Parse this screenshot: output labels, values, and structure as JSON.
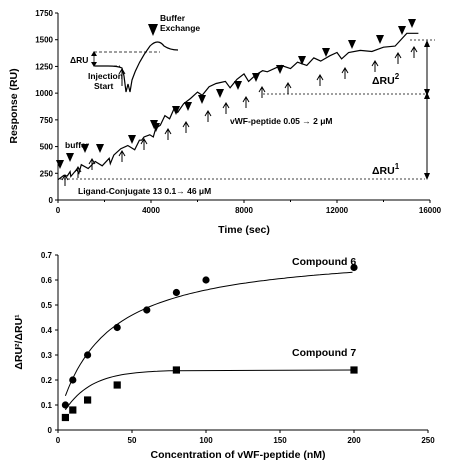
{
  "chart_data": [
    {
      "type": "line",
      "xlabel": "Time  (sec)",
      "ylabel": "Response (RU)",
      "xlim": [
        0,
        16000
      ],
      "ylim": [
        0,
        1750
      ],
      "xticks": [
        "0",
        "4000",
        "8000",
        "12000",
        "16000"
      ],
      "yticks": [
        "0",
        "250",
        "500",
        "750",
        "1000",
        "1250",
        "1500",
        "1750"
      ],
      "series": [
        {
          "x": [
            0,
            250,
            400,
            520,
            550,
            800,
            900,
            1000,
            1300,
            1600,
            1900,
            2200,
            2250,
            2400,
            2700,
            3000,
            3300,
            3500,
            3600,
            3700,
            3950,
            4100,
            4200,
            4400,
            4600,
            4800,
            5000,
            5150,
            5400,
            5700,
            6000,
            6200,
            6500,
            6800,
            7200,
            7400,
            7700,
            8000,
            8200,
            8500,
            8800,
            9000,
            9600,
            10000,
            10300,
            10700,
            11000,
            11300,
            11700,
            12000,
            12200,
            12500,
            13000,
            13500,
            14000,
            14500,
            15000,
            15500
          ],
          "y": [
            190,
            230,
            225,
            265,
            220,
            285,
            250,
            330,
            295,
            360,
            320,
            390,
            340,
            420,
            480,
            510,
            470,
            560,
            560,
            590,
            610,
            590,
            670,
            700,
            790,
            760,
            860,
            820,
            900,
            950,
            1010,
            980,
            1060,
            1090,
            1110,
            1050,
            1130,
            1180,
            1110,
            1170,
            1210,
            1200,
            1260,
            1230,
            1290,
            1260,
            1330,
            1300,
            1350,
            1380,
            1320,
            1380,
            1400,
            1390,
            1430,
            1440,
            1560,
            1560
          ]
        }
      ],
      "annotations": {
        "buffer": "buffer",
        "injection_start": "Injection\nStart",
        "buffer_exchange": "Buffer\nExchange",
        "delta_ru": "ΔRU",
        "vwf_peptide": "vWF-peptide 0.05 → 2 μM",
        "ligand_conjugate": "Ligand-Conjugate 13  0.1→ 46 μM",
        "delta_ru2": "ΔRU",
        "delta_ru2_sup": "2",
        "delta_ru1": "ΔRU",
        "delta_ru1_sup": "1"
      }
    },
    {
      "type": "scatter",
      "xlabel": "Concentration of vWF-peptide  (nM)",
      "ylabel": "ΔRU²/ΔRU¹",
      "xlim": [
        0,
        250
      ],
      "ylim": [
        0,
        0.7
      ],
      "xticks": [
        "0",
        "50",
        "100",
        "150",
        "200",
        "250"
      ],
      "yticks": [
        "0",
        "0.1",
        "0.2",
        "0.3",
        "0.4",
        "0.5",
        "0.6",
        "0.7"
      ],
      "series": [
        {
          "name": "Compound 6",
          "marker": "circle",
          "x": [
            5,
            10,
            20,
            40,
            60,
            80,
            100,
            200
          ],
          "y": [
            0.1,
            0.2,
            0.3,
            0.41,
            0.48,
            0.55,
            0.6,
            0.65
          ]
        },
        {
          "name": "Compound 7",
          "marker": "square",
          "x": [
            5,
            10,
            20,
            40,
            80,
            200
          ],
          "y": [
            0.05,
            0.08,
            0.12,
            0.18,
            0.24,
            0.24
          ]
        }
      ]
    }
  ]
}
